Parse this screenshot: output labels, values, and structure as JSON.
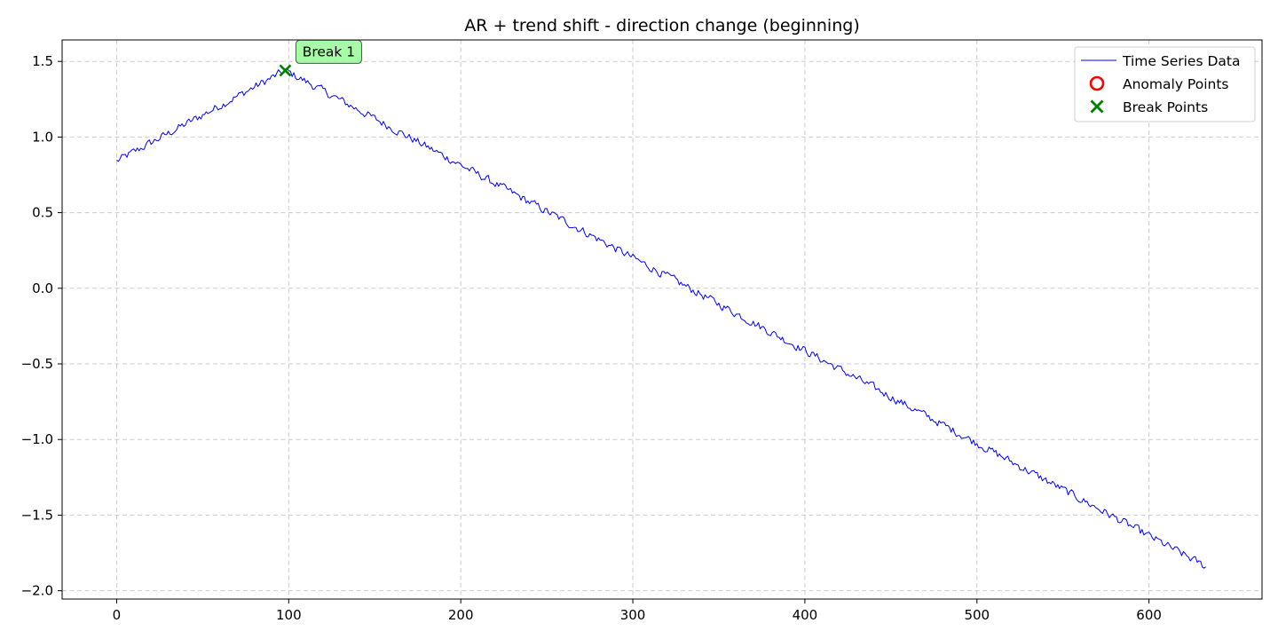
{
  "chart_data": {
    "type": "line",
    "title": "AR + trend shift - direction change (beginning)",
    "xlabel": "",
    "ylabel": "",
    "xlim": [
      -31.7,
      665.7
    ],
    "ylim": [
      -2.055,
      1.642
    ],
    "xticks": [
      0,
      100,
      200,
      300,
      400,
      500,
      600
    ],
    "xtick_labels": [
      "0",
      "100",
      "200",
      "300",
      "400",
      "500",
      "600"
    ],
    "yticks": [
      -2.0,
      -1.5,
      -1.0,
      -0.5,
      0.0,
      0.5,
      1.0,
      1.5
    ],
    "ytick_labels": [
      "−2.0",
      "−1.5",
      "−1.0",
      "−0.5",
      "0.0",
      "0.5",
      "1.0",
      "1.5"
    ],
    "grid": true,
    "legend_position": "top-right",
    "series": [
      {
        "name": "Time Series Data",
        "kind": "line",
        "color": "#0000ff",
        "n_points": 634,
        "x_start": 0,
        "x_end": 633,
        "trend_segments": [
          {
            "x_from": 0,
            "x_to": 98,
            "y_from": 0.84,
            "y_to": 1.44
          },
          {
            "x_from": 98,
            "x_to": 633,
            "y_from": 1.44,
            "y_to": -1.84
          }
        ],
        "noise_amplitude": 0.025
      },
      {
        "name": "Anomaly Points",
        "kind": "marker",
        "marker": "circle-open",
        "color": "#ff0000",
        "points": []
      },
      {
        "name": "Break Points",
        "kind": "marker",
        "marker": "x",
        "color": "#008000",
        "points": [
          {
            "x": 98,
            "y": 1.44
          }
        ]
      }
    ],
    "annotations": [
      {
        "text": "Break 1",
        "x": 98,
        "y": 1.44,
        "box_color": "#98fb98"
      }
    ]
  }
}
